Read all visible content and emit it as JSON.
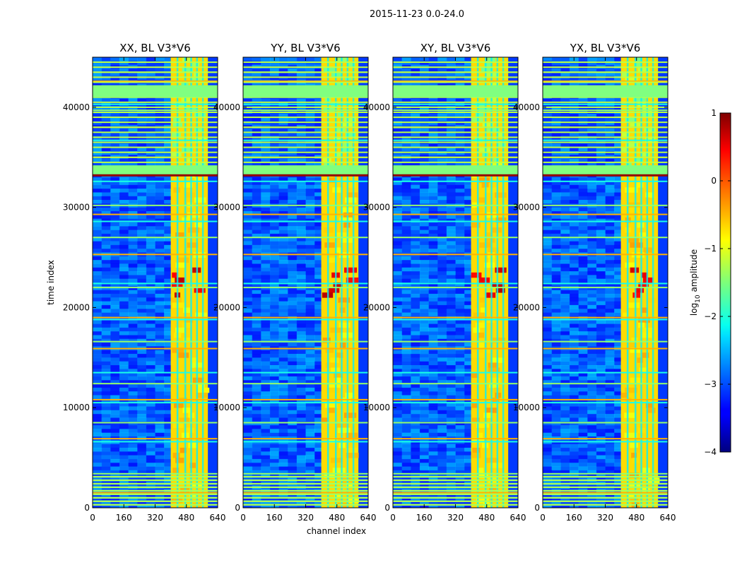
{
  "figure": {
    "suptitle": "2015-11-23 0.0-24.0"
  },
  "chart_data": {
    "type": "heatmap",
    "title": "2015-11-23 0.0-24.0",
    "xlabel": "channel index",
    "ylabel": "time index",
    "xlim": [
      0,
      640
    ],
    "ylim": [
      0,
      45000
    ],
    "xticks": [
      0,
      160,
      320,
      480,
      640
    ],
    "yticks": [
      0,
      10000,
      20000,
      30000,
      40000
    ],
    "panels": [
      {
        "title": "XX, BL V3*V6"
      },
      {
        "title": "YY, BL V3*V6"
      },
      {
        "title": "XY, BL V3*V6"
      },
      {
        "title": "YX, BL V3*V6"
      }
    ],
    "colorbar": {
      "label": "log10 amplitude",
      "label_base": "log",
      "label_sub": "10",
      "label_rest": " amplitude",
      "range": [
        -4,
        1
      ],
      "ticks": [
        1,
        0,
        -1,
        -2,
        -3,
        -4
      ],
      "tick_labels": [
        "1",
        "0",
        "−1",
        "−2",
        "−3",
        "−4"
      ],
      "colormap": "jet"
    },
    "rfi_channel_band": [
      400,
      590
    ],
    "strong_rfi_time_band": [
      21000,
      24500
    ],
    "flagged_time_blocks": [
      [
        33300,
        34200
      ],
      [
        41000,
        42200
      ]
    ],
    "flagged_rows": [
      1500,
      3400,
      6600,
      6900,
      8500,
      10500,
      10800,
      12400,
      13500,
      15900,
      16600,
      18800,
      19000,
      22000,
      22400,
      25300,
      27000,
      28600,
      29300,
      30200,
      32600,
      35000,
      36500,
      36700,
      38000,
      39700,
      40300,
      42600,
      43500
    ]
  }
}
